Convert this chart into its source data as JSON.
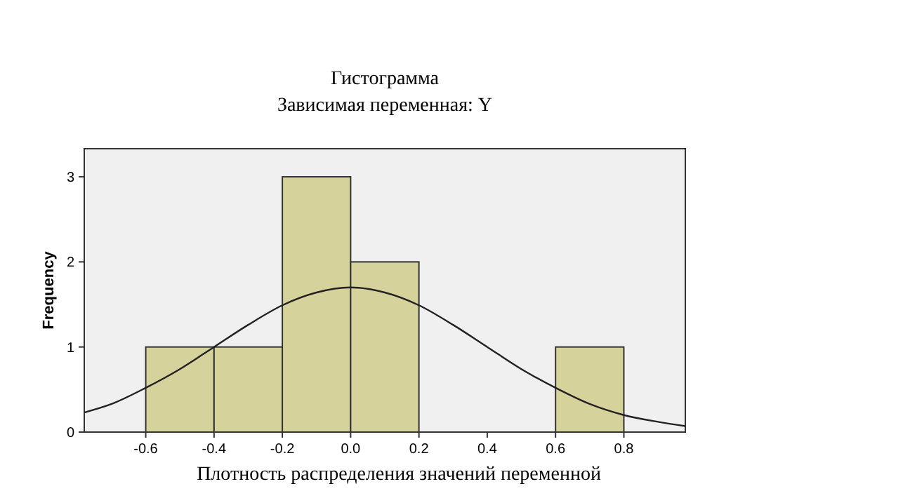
{
  "chart_data": {
    "type": "histogram",
    "title": "Гистограмма",
    "subtitle": "Зависимая переменная: Y",
    "xlabel": "Плотность распределения значений переменной",
    "ylabel": "Frequency",
    "bins": [
      -0.6,
      -0.4,
      -0.2,
      0,
      0.2,
      0.4,
      0.6,
      0.8
    ],
    "series": [
      {
        "color": "#d6d29c",
        "values": [
          1,
          1,
          3,
          2,
          0,
          0,
          1
        ]
      },
      {
        "type": "line",
        "color": "#222222",
        "x": [
          -0.78,
          -0.7,
          -0.6,
          -0.5,
          -0.4,
          -0.3,
          -0.2,
          -0.1,
          0,
          0.1,
          0.2,
          0.3,
          0.4,
          0.5,
          0.6,
          0.7,
          0.8,
          0.9,
          0.98
        ],
        "values": [
          0.23,
          0.33,
          0.52,
          0.74,
          1.0,
          1.26,
          1.49,
          1.64,
          1.7,
          1.64,
          1.49,
          1.26,
          1.0,
          0.74,
          0.52,
          0.33,
          0.2,
          0.12,
          0.07
        ]
      }
    ],
    "xlim": [
      -0.78,
      0.98
    ],
    "xticks": [
      {
        "value": -0.6,
        "label": "-0.6"
      },
      {
        "value": -0.4,
        "label": "-0.4"
      },
      {
        "value": -0.2,
        "label": "-0.2"
      },
      {
        "value": 0,
        "label": "0.0"
      },
      {
        "value": 0.2,
        "label": "0.2"
      },
      {
        "value": 0.4,
        "label": "0.4"
      },
      {
        "value": 0.6,
        "label": "0.6"
      },
      {
        "value": 0.8,
        "label": "0.8"
      }
    ],
    "ylim": [
      0,
      3.33
    ],
    "yticks": [
      0,
      1,
      2,
      3
    ],
    "grid": false
  }
}
